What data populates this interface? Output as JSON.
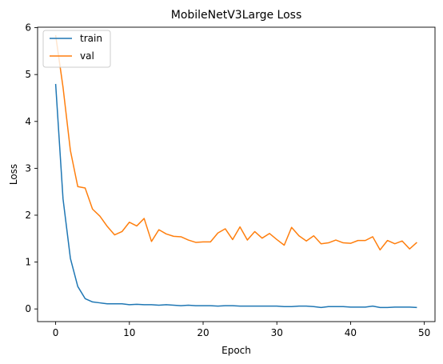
{
  "chart_data": {
    "type": "line",
    "title": "MobileNetV3Large Loss",
    "xlabel": "Epoch",
    "ylabel": "Loss",
    "xlim": [
      -2.45,
      51.45
    ],
    "ylim": [
      -0.27,
      6.01
    ],
    "xticks": [
      0,
      10,
      20,
      30,
      40,
      50
    ],
    "yticks": [
      0,
      1,
      2,
      3,
      4,
      5,
      6
    ],
    "legend_position": "upper-left",
    "grid": false,
    "series": [
      {
        "name": "train",
        "color": "#1f77b4",
        "values": [
          4.8,
          2.35,
          1.08,
          0.48,
          0.22,
          0.15,
          0.13,
          0.11,
          0.11,
          0.11,
          0.09,
          0.1,
          0.09,
          0.09,
          0.08,
          0.09,
          0.08,
          0.07,
          0.08,
          0.07,
          0.07,
          0.07,
          0.06,
          0.07,
          0.07,
          0.06,
          0.06,
          0.06,
          0.06,
          0.06,
          0.06,
          0.05,
          0.05,
          0.06,
          0.06,
          0.05,
          0.03,
          0.05,
          0.05,
          0.05,
          0.04,
          0.04,
          0.04,
          0.06,
          0.03,
          0.03,
          0.04,
          0.04,
          0.04,
          0.03
        ]
      },
      {
        "name": "val",
        "color": "#ff7f0e",
        "values": [
          5.84,
          4.73,
          3.38,
          2.61,
          2.58,
          2.13,
          1.98,
          1.76,
          1.58,
          1.65,
          1.85,
          1.77,
          1.93,
          1.44,
          1.69,
          1.6,
          1.55,
          1.54,
          1.47,
          1.42,
          1.43,
          1.43,
          1.62,
          1.71,
          1.48,
          1.75,
          1.47,
          1.65,
          1.51,
          1.61,
          1.48,
          1.36,
          1.74,
          1.56,
          1.45,
          1.56,
          1.39,
          1.41,
          1.47,
          1.41,
          1.4,
          1.46,
          1.46,
          1.54,
          1.26,
          1.46,
          1.39,
          1.45,
          1.28,
          1.42
        ]
      }
    ]
  }
}
